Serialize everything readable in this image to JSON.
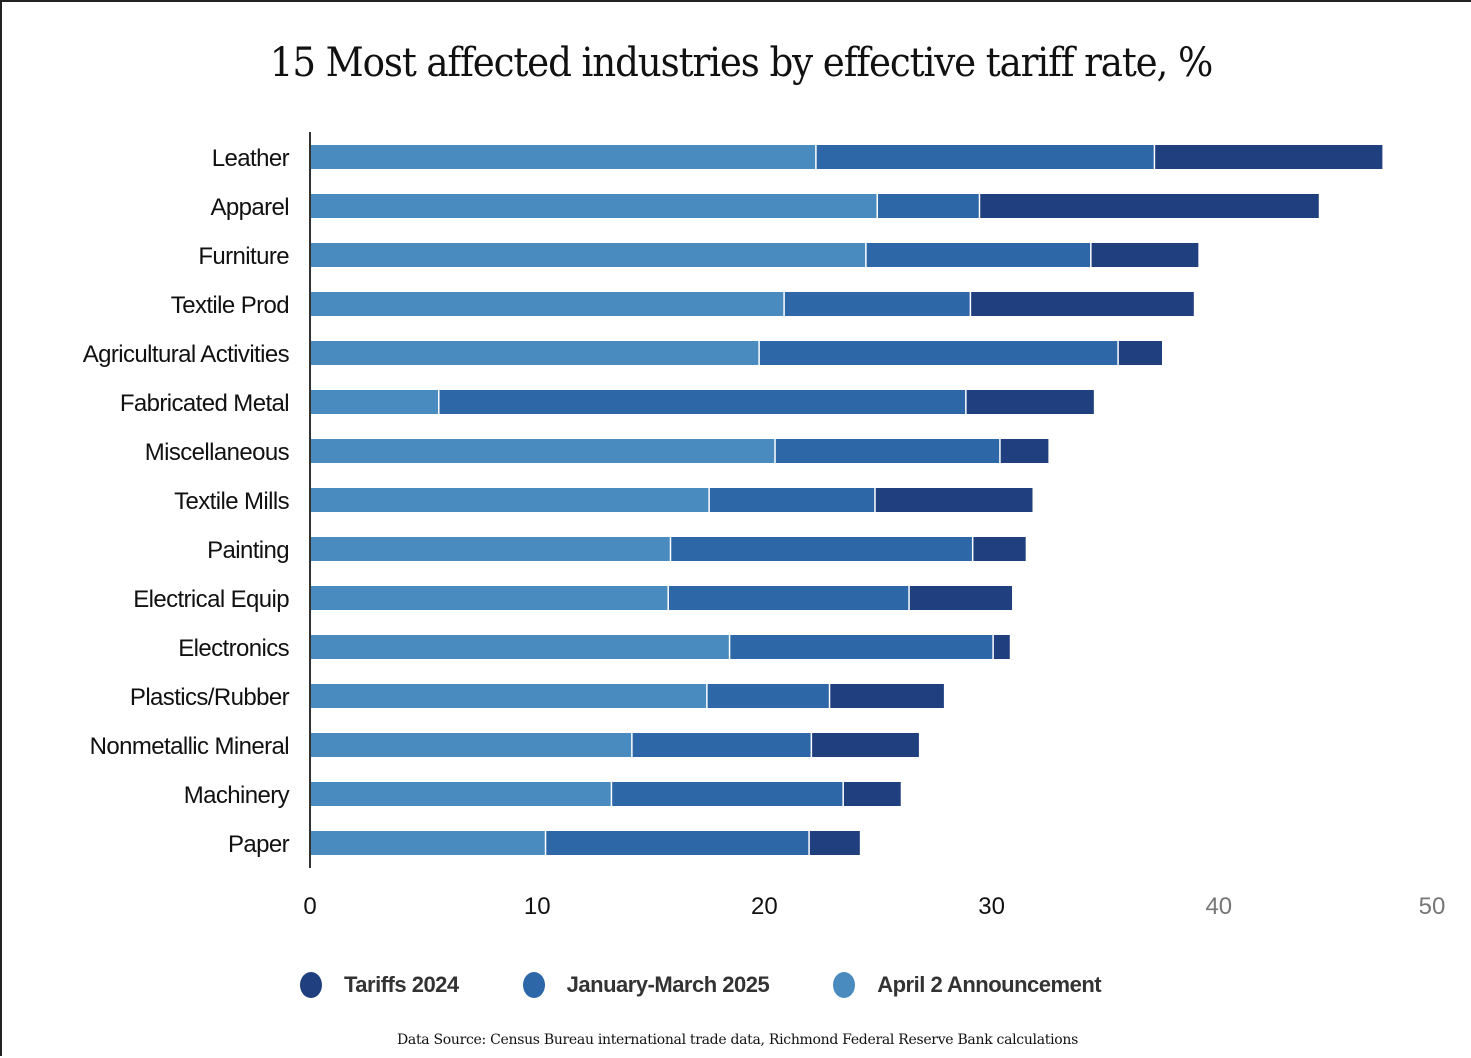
{
  "chart_data": {
    "type": "bar",
    "orientation": "horizontal",
    "stacked": true,
    "title": "15 Most affected industries by effective tariff rate, %",
    "xlabel": "",
    "ylabel": "",
    "xlim": [
      0,
      50
    ],
    "xticks": [
      0,
      10,
      20,
      30,
      40,
      50
    ],
    "grid": false,
    "legend_position": "bottom",
    "categories": [
      "Leather",
      "Apparel",
      "Furniture",
      "Textile Prod",
      "Agricultural Activities",
      "Fabricated Metal",
      "Miscellaneous",
      "Textile Mills",
      "Painting",
      "Electrical Equip",
      "Electronics",
      "Plastics/Rubber",
      "Nonmetallic Mineral",
      "Machinery",
      "Paper"
    ],
    "series": [
      {
        "name": "April 2 Announcement",
        "color": "#4a8bbf",
        "values": [
          22.3,
          25.0,
          24.5,
          20.9,
          19.8,
          5.7,
          20.5,
          17.6,
          15.9,
          15.8,
          18.5,
          17.5,
          14.2,
          13.3,
          10.4
        ]
      },
      {
        "name": "January-March 2025",
        "color": "#2d67a8",
        "values": [
          14.9,
          4.5,
          9.9,
          8.2,
          15.8,
          23.2,
          9.9,
          7.3,
          13.3,
          10.6,
          11.6,
          5.4,
          7.9,
          10.2,
          11.6
        ]
      },
      {
        "name": "Tariffs 2024",
        "color": "#1f3f7e",
        "values": [
          10.0,
          14.9,
          4.7,
          9.8,
          1.9,
          5.6,
          2.1,
          6.9,
          2.3,
          4.5,
          0.7,
          5.0,
          4.7,
          2.5,
          2.2
        ]
      }
    ],
    "cumulative_ends": {
      "April 2 Announcement": [
        22.3,
        25.0,
        24.5,
        20.9,
        19.8,
        5.7,
        20.5,
        17.6,
        15.9,
        15.8,
        18.5,
        17.5,
        14.2,
        13.3,
        10.4
      ],
      "January-March 2025": [
        37.2,
        29.5,
        34.4,
        29.1,
        35.6,
        28.9,
        30.4,
        24.9,
        29.2,
        26.4,
        30.1,
        22.9,
        22.1,
        23.5,
        22.0
      ],
      "Tariffs 2024": [
        47.2,
        44.4,
        39.1,
        38.9,
        37.5,
        34.5,
        32.5,
        31.8,
        31.5,
        30.9,
        30.8,
        27.9,
        26.8,
        26.0,
        24.2
      ]
    },
    "tick_label_colors": [
      "#111111",
      "#111111",
      "#111111",
      "#111111",
      "#777777",
      "#777777"
    ]
  },
  "legend": {
    "items": [
      {
        "label": "Tariffs 2024",
        "color": "#1f3f7e"
      },
      {
        "label": "January-March 2025",
        "color": "#2d67a8"
      },
      {
        "label": "April 2 Announcement",
        "color": "#4a8bbf"
      }
    ]
  },
  "footer": {
    "source": "Data Source: Census Bureau international trade data, Richmond Federal Reserve Bank calculations"
  }
}
